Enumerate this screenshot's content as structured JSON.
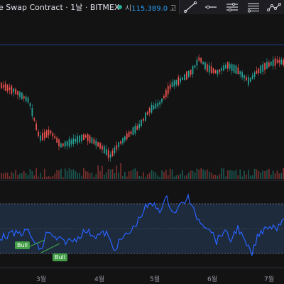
{
  "header": {
    "title": "e Swap Contract · 1날 · BITMEX",
    "ohlc_label_open": "시",
    "ohlc_open": "115,389.0",
    "ohlc_label_high": "고",
    "status_color": "#22ab94"
  },
  "toolbar": {
    "tools": [
      {
        "icon": "trend-line-icon"
      },
      {
        "icon": "horizontal-ray-icon"
      },
      {
        "icon": "parallel-channel-icon"
      },
      {
        "icon": "fib-retracement-icon"
      },
      {
        "icon": "path-icon"
      }
    ]
  },
  "indicator": {
    "divergence_labels": [
      "Bull",
      "Bull"
    ]
  },
  "xaxis": {
    "labels": [
      "3월",
      "4월",
      "5월",
      "6월",
      "7월"
    ]
  },
  "colors": {
    "up": "#26a69a",
    "down": "#ef5350",
    "rsi_line": "#2962ff",
    "rsi_band": "#1d2b3d",
    "bull_label": "#43a047"
  }
}
